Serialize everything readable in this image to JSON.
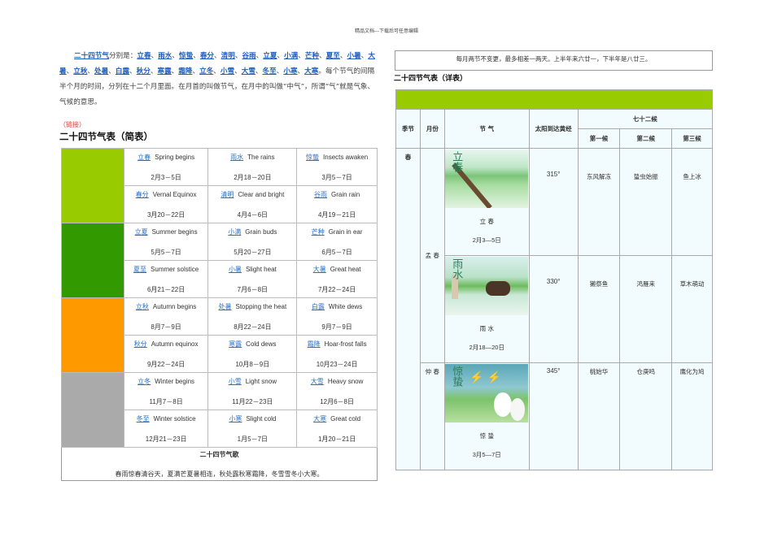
{
  "header_note": "精品文档---下载后可任意编辑",
  "intro": {
    "lead_link": "二十四节气",
    "lead_text": "分别是：",
    "terms": [
      "立春",
      "雨水",
      "惊蛰",
      "春分",
      "清明",
      "谷雨",
      "立夏",
      "小满",
      "芒种",
      "夏至",
      "小暑",
      "大暑",
      "立秋",
      "处暑",
      "白露",
      "秋分",
      "寒露",
      "霜降",
      "立冬",
      "小雪",
      "大雪",
      "冬至",
      "小寒",
      "大寒"
    ],
    "tail": "。每个节气的间隔半个月的时间，分列在十二个月里面。在月首的叫做节气，在月中的叫做“中气”，所谓“气”就是气象、气候的意思。"
  },
  "link_label": "（链接）",
  "simple_title": "二十四节气表（简表）",
  "season_colors": [
    "#99cc00",
    "#339900",
    "#ff9900",
    "#aaaaaa"
  ],
  "simple_rows": [
    [
      {
        "cn": "立春",
        "en": "Spring begins",
        "date": "2月3－5日"
      },
      {
        "cn": "雨水",
        "en": "The rains",
        "date": "2月18－20日"
      },
      {
        "cn": "惊蛰",
        "en": "Insects awaken",
        "date": "3月5－7日"
      }
    ],
    [
      {
        "cn": "春分",
        "en": "Vernal Equinox",
        "date": "3月20－22日"
      },
      {
        "cn": "清明",
        "en": "Clear and bright",
        "date": "4月4－6日"
      },
      {
        "cn": "谷雨",
        "en": "Grain rain",
        "date": "4月19－21日"
      }
    ],
    [
      {
        "cn": "立夏",
        "en": "Summer begins",
        "date": "5月5－7日"
      },
      {
        "cn": "小满",
        "en": "Grain buds",
        "date": "5月20－27日"
      },
      {
        "cn": "芒种",
        "en": "Grain in ear",
        "date": "6月5－7日"
      }
    ],
    [
      {
        "cn": "夏至",
        "en": "Summer solstice",
        "date": "6月21－22日"
      },
      {
        "cn": "小暑",
        "en": "Slight heat",
        "date": "7月6－8日"
      },
      {
        "cn": "大暑",
        "en": "Great heat",
        "date": "7月22－24日"
      }
    ],
    [
      {
        "cn": "立秋",
        "en": "Autumn begins",
        "date": "8月7－9日"
      },
      {
        "cn": "处暑",
        "en": "Stopping the heat",
        "date": "8月22－24日"
      },
      {
        "cn": "白露",
        "en": "White dews",
        "date": "9月7－9日"
      }
    ],
    [
      {
        "cn": "秋分",
        "en": "Autumn equinox",
        "date": "9月22－24日"
      },
      {
        "cn": "寒露",
        "en": "Cold dews",
        "date": "10月8－9日"
      },
      {
        "cn": "霜降",
        "en": "Hoar-frost falls",
        "date": "10月23－24日"
      }
    ],
    [
      {
        "cn": "立冬",
        "en": "Winter begins",
        "date": "11月7－8日"
      },
      {
        "cn": "小雪",
        "en": "Light snow",
        "date": "11月22－23日"
      },
      {
        "cn": "大雪",
        "en": "Heavy snow",
        "date": "12月6－8日"
      }
    ],
    [
      {
        "cn": "冬至",
        "en": "Winter solstice",
        "date": "12月21－23日"
      },
      {
        "cn": "小寒",
        "en": "Slight cold",
        "date": "1月5－7日"
      },
      {
        "cn": "大寒",
        "en": "Great cold",
        "date": "1月20－21日"
      }
    ]
  ],
  "song": {
    "title": "二十四节气歌",
    "text": "春雨惊春清谷天，夏满芒夏暑相连，秋处露秋寒霜降，冬雪雪冬小大寒。"
  },
  "rule_note": "每月两节不变更，最多相差一两天。上半年来六廿一，下半年是八廿三。",
  "detail_title": "二十四节气表（详表）",
  "detail_header_color": "#99cc00",
  "detail_headers": {
    "season": "季节",
    "month": "月份",
    "term": "节 气",
    "longitude": "太阳到达黄经",
    "hou": "七十二候",
    "hou1": "第一候",
    "hou2": "第二候",
    "hou3": "第三候"
  },
  "detail": {
    "season": "春",
    "months": [
      "孟 春",
      "仲 春"
    ],
    "rows": [
      {
        "term": "立 春",
        "date": "2月3—5日",
        "longitude": "315°",
        "h1": "东风解冻",
        "h2": "蛰虫始振",
        "h3": "鱼上冰",
        "pic_label": "立春"
      },
      {
        "term": "雨 水",
        "date": "2月18—20日",
        "longitude": "330°",
        "h1": "獭祭鱼",
        "h2": "鸿雁来",
        "h3": "草木萌动",
        "pic_label": "雨水"
      },
      {
        "term": "惊 蛰",
        "date": "3月5—7日",
        "longitude": "345°",
        "h1": "桃始华",
        "h2": "仓庚鸣",
        "h3": "鹰化为鸠",
        "pic_label": "惊蛰"
      }
    ]
  }
}
